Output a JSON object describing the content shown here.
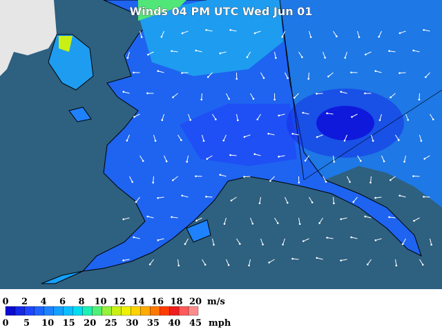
{
  "title": "Winds 04 PM UTC Wed Jun 01",
  "legend": {
    "ms_labels": [
      "0",
      "2",
      "4",
      "6",
      "8",
      "10",
      "12",
      "14",
      "16",
      "18",
      "20"
    ],
    "ms_unit": "m/s",
    "mph_labels": [
      "0",
      "5",
      "10",
      "15",
      "20",
      "25",
      "30",
      "35",
      "40",
      "45"
    ],
    "mph_unit": "mph",
    "colors": [
      "#0a0ad2",
      "#1428e6",
      "#1e46ff",
      "#1e64ff",
      "#1e82ff",
      "#14a0ff",
      "#0abeff",
      "#00dcf0",
      "#1ef0b4",
      "#50f078",
      "#96f03c",
      "#c8f014",
      "#f0f000",
      "#ffd200",
      "#ffaa00",
      "#ff7800",
      "#ff3c00",
      "#f01e1e",
      "#ff5a5a",
      "#ff8c8c"
    ]
  }
}
